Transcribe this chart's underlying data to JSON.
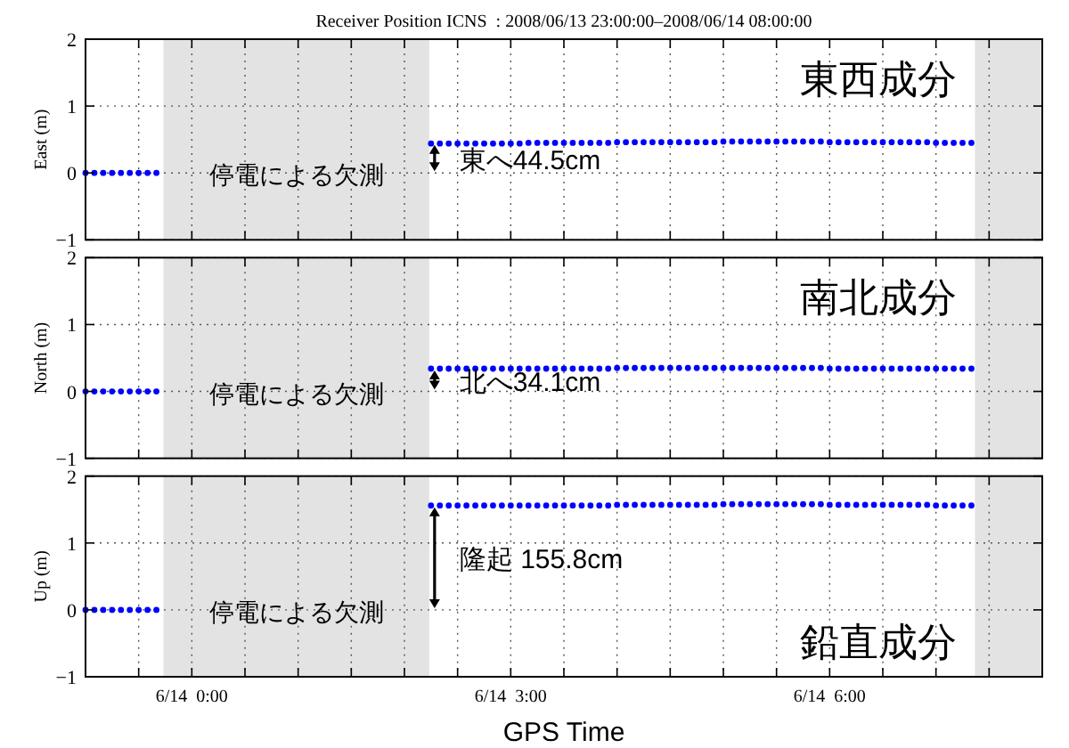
{
  "chart_data": [
    {
      "type": "scatter",
      "title": "Receiver Position ICNS  : 2008/06/13 23:00:00–2008/06/14 08:00:00",
      "ylabel": "East (m)",
      "marker": "circle",
      "grid": true,
      "tick_labels": "y",
      "xlim": [
        "2008-06-13T23:00",
        "2008-06-14T08:00"
      ],
      "xticks": [
        {
          "value": "2008-06-13T23:00",
          "label": null
        },
        {
          "value": "2008-06-13T23:30",
          "label": null
        },
        {
          "value": "2008-06-14T00:00",
          "label": null
        },
        {
          "value": "2008-06-14T00:30",
          "label": null
        },
        {
          "value": "2008-06-14T01:00",
          "label": null
        },
        {
          "value": "2008-06-14T01:30",
          "label": null
        },
        {
          "value": "2008-06-14T02:00",
          "label": null
        },
        {
          "value": "2008-06-14T02:30",
          "label": null
        },
        {
          "value": "2008-06-14T03:00",
          "label": null
        },
        {
          "value": "2008-06-14T03:30",
          "label": null
        },
        {
          "value": "2008-06-14T04:00",
          "label": null
        },
        {
          "value": "2008-06-14T04:30",
          "label": null
        },
        {
          "value": "2008-06-14T05:00",
          "label": null
        },
        {
          "value": "2008-06-14T05:30",
          "label": null
        },
        {
          "value": "2008-06-14T06:00",
          "label": null
        },
        {
          "value": "2008-06-14T06:30",
          "label": null
        },
        {
          "value": "2008-06-14T07:00",
          "label": null
        },
        {
          "value": "2008-06-14T07:30",
          "label": null
        },
        {
          "value": "2008-06-14T08:00",
          "label": null
        }
      ],
      "ylim": [
        -1,
        2
      ],
      "yticks": [
        -1,
        0,
        1,
        2
      ],
      "bands": [
        {
          "axis": "x",
          "from": "2008-06-13T23:44",
          "to": "2008-06-14T02:14",
          "color": "#e3e3e3"
        },
        {
          "axis": "x",
          "from": "2008-06-14T07:22",
          "to": "2008-06-14T08:00",
          "color": "#e3e3e3"
        }
      ],
      "annotations": [
        "停電による欠測",
        "東西成分",
        {
          "text": "東へ44.5cm",
          "x": "2008-06-14T02:15",
          "y": 0.445
        }
      ],
      "series": [
        {
          "color": "#0000ff",
          "x": [
            "2008-06-13T23:00",
            "2008-06-13T23:05",
            "2008-06-13T23:10",
            "2008-06-13T23:15",
            "2008-06-13T23:20",
            "2008-06-13T23:25",
            "2008-06-13T23:30",
            "2008-06-13T23:35",
            "2008-06-13T23:40"
          ],
          "values": [
            0,
            0,
            0,
            0,
            0,
            0,
            0,
            0,
            0
          ]
        },
        {
          "color": "#0000ff",
          "x": [
            "2008-06-14T02:15",
            "2008-06-14T02:20",
            "2008-06-14T02:25",
            "2008-06-14T02:30",
            "2008-06-14T02:35",
            "2008-06-14T02:40",
            "2008-06-14T02:45",
            "2008-06-14T02:50",
            "2008-06-14T02:55",
            "2008-06-14T03:00",
            "2008-06-14T03:05",
            "2008-06-14T03:10",
            "2008-06-14T03:15",
            "2008-06-14T03:20",
            "2008-06-14T03:25",
            "2008-06-14T03:30",
            "2008-06-14T03:35",
            "2008-06-14T03:40",
            "2008-06-14T03:45",
            "2008-06-14T03:50",
            "2008-06-14T03:55",
            "2008-06-14T04:00",
            "2008-06-14T04:05",
            "2008-06-14T04:10",
            "2008-06-14T04:15",
            "2008-06-14T04:20",
            "2008-06-14T04:25",
            "2008-06-14T04:30",
            "2008-06-14T04:35",
            "2008-06-14T04:40",
            "2008-06-14T04:45",
            "2008-06-14T04:50",
            "2008-06-14T04:55",
            "2008-06-14T05:00",
            "2008-06-14T05:05",
            "2008-06-14T05:10",
            "2008-06-14T05:15",
            "2008-06-14T05:20",
            "2008-06-14T05:25",
            "2008-06-14T05:30",
            "2008-06-14T05:35",
            "2008-06-14T05:40",
            "2008-06-14T05:45",
            "2008-06-14T05:50",
            "2008-06-14T05:55",
            "2008-06-14T06:00",
            "2008-06-14T06:05",
            "2008-06-14T06:10",
            "2008-06-14T06:15",
            "2008-06-14T06:20",
            "2008-06-14T06:25",
            "2008-06-14T06:30",
            "2008-06-14T06:35",
            "2008-06-14T06:40",
            "2008-06-14T06:45",
            "2008-06-14T06:50",
            "2008-06-14T06:55",
            "2008-06-14T07:00",
            "2008-06-14T07:05",
            "2008-06-14T07:10",
            "2008-06-14T07:15",
            "2008-06-14T07:20"
          ],
          "values": [
            0.44,
            0.44,
            0.44,
            0.44,
            0.44,
            0.44,
            0.44,
            0.44,
            0.44,
            0.44,
            0.44,
            0.45,
            0.45,
            0.45,
            0.45,
            0.45,
            0.45,
            0.45,
            0.45,
            0.45,
            0.45,
            0.46,
            0.46,
            0.46,
            0.46,
            0.46,
            0.46,
            0.46,
            0.46,
            0.46,
            0.46,
            0.46,
            0.46,
            0.47,
            0.47,
            0.47,
            0.47,
            0.47,
            0.47,
            0.47,
            0.47,
            0.47,
            0.47,
            0.47,
            0.47,
            0.46,
            0.46,
            0.46,
            0.46,
            0.46,
            0.46,
            0.46,
            0.46,
            0.46,
            0.46,
            0.46,
            0.46,
            0.45,
            0.45,
            0.45,
            0.45,
            0.45
          ]
        }
      ]
    },
    {
      "type": "scatter",
      "ylabel": "North (m)",
      "marker": "circle",
      "grid": true,
      "tick_labels": "y",
      "xlim": [
        "2008-06-13T23:00",
        "2008-06-14T08:00"
      ],
      "xticks": [
        {
          "value": "2008-06-13T23:00",
          "label": null
        },
        {
          "value": "2008-06-13T23:30",
          "label": null
        },
        {
          "value": "2008-06-14T00:00",
          "label": null
        },
        {
          "value": "2008-06-14T00:30",
          "label": null
        },
        {
          "value": "2008-06-14T01:00",
          "label": null
        },
        {
          "value": "2008-06-14T01:30",
          "label": null
        },
        {
          "value": "2008-06-14T02:00",
          "label": null
        },
        {
          "value": "2008-06-14T02:30",
          "label": null
        },
        {
          "value": "2008-06-14T03:00",
          "label": null
        },
        {
          "value": "2008-06-14T03:30",
          "label": null
        },
        {
          "value": "2008-06-14T04:00",
          "label": null
        },
        {
          "value": "2008-06-14T04:30",
          "label": null
        },
        {
          "value": "2008-06-14T05:00",
          "label": null
        },
        {
          "value": "2008-06-14T05:30",
          "label": null
        },
        {
          "value": "2008-06-14T06:00",
          "label": null
        },
        {
          "value": "2008-06-14T06:30",
          "label": null
        },
        {
          "value": "2008-06-14T07:00",
          "label": null
        },
        {
          "value": "2008-06-14T07:30",
          "label": null
        },
        {
          "value": "2008-06-14T08:00",
          "label": null
        }
      ],
      "ylim": [
        -1,
        2
      ],
      "yticks": [
        -1,
        0,
        1,
        2
      ],
      "bands": [
        {
          "axis": "x",
          "from": "2008-06-13T23:44",
          "to": "2008-06-14T02:14",
          "color": "#e3e3e3"
        },
        {
          "axis": "x",
          "from": "2008-06-14T07:22",
          "to": "2008-06-14T08:00",
          "color": "#e3e3e3"
        }
      ],
      "annotations": [
        "停電による欠測",
        "南北成分",
        {
          "text": "北へ34.1cm",
          "x": "2008-06-14T02:15",
          "y": 0.341
        }
      ],
      "series": [
        {
          "color": "#0000ff",
          "x": [
            "2008-06-13T23:00",
            "2008-06-13T23:05",
            "2008-06-13T23:10",
            "2008-06-13T23:15",
            "2008-06-13T23:20",
            "2008-06-13T23:25",
            "2008-06-13T23:30",
            "2008-06-13T23:35",
            "2008-06-13T23:40"
          ],
          "values": [
            0,
            0,
            0,
            0,
            0,
            0,
            0,
            0,
            0
          ]
        },
        {
          "color": "#0000ff",
          "x": [
            "2008-06-14T02:15",
            "2008-06-14T02:20",
            "2008-06-14T02:25",
            "2008-06-14T02:30",
            "2008-06-14T02:35",
            "2008-06-14T02:40",
            "2008-06-14T02:45",
            "2008-06-14T02:50",
            "2008-06-14T02:55",
            "2008-06-14T03:00",
            "2008-06-14T03:05",
            "2008-06-14T03:10",
            "2008-06-14T03:15",
            "2008-06-14T03:20",
            "2008-06-14T03:25",
            "2008-06-14T03:30",
            "2008-06-14T03:35",
            "2008-06-14T03:40",
            "2008-06-14T03:45",
            "2008-06-14T03:50",
            "2008-06-14T03:55",
            "2008-06-14T04:00",
            "2008-06-14T04:05",
            "2008-06-14T04:10",
            "2008-06-14T04:15",
            "2008-06-14T04:20",
            "2008-06-14T04:25",
            "2008-06-14T04:30",
            "2008-06-14T04:35",
            "2008-06-14T04:40",
            "2008-06-14T04:45",
            "2008-06-14T04:50",
            "2008-06-14T04:55",
            "2008-06-14T05:00",
            "2008-06-14T05:05",
            "2008-06-14T05:10",
            "2008-06-14T05:15",
            "2008-06-14T05:20",
            "2008-06-14T05:25",
            "2008-06-14T05:30",
            "2008-06-14T05:35",
            "2008-06-14T05:40",
            "2008-06-14T05:45",
            "2008-06-14T05:50",
            "2008-06-14T05:55",
            "2008-06-14T06:00",
            "2008-06-14T06:05",
            "2008-06-14T06:10",
            "2008-06-14T06:15",
            "2008-06-14T06:20",
            "2008-06-14T06:25",
            "2008-06-14T06:30",
            "2008-06-14T06:35",
            "2008-06-14T06:40",
            "2008-06-14T06:45",
            "2008-06-14T06:50",
            "2008-06-14T06:55",
            "2008-06-14T07:00",
            "2008-06-14T07:05",
            "2008-06-14T07:10",
            "2008-06-14T07:15",
            "2008-06-14T07:20"
          ],
          "values": [
            0.34,
            0.34,
            0.34,
            0.34,
            0.34,
            0.34,
            0.34,
            0.34,
            0.34,
            0.34,
            0.34,
            0.34,
            0.34,
            0.34,
            0.34,
            0.34,
            0.34,
            0.34,
            0.34,
            0.34,
            0.34,
            0.35,
            0.35,
            0.35,
            0.35,
            0.35,
            0.35,
            0.35,
            0.35,
            0.35,
            0.35,
            0.35,
            0.35,
            0.35,
            0.35,
            0.35,
            0.35,
            0.35,
            0.35,
            0.35,
            0.35,
            0.35,
            0.35,
            0.35,
            0.35,
            0.34,
            0.34,
            0.34,
            0.34,
            0.34,
            0.34,
            0.34,
            0.34,
            0.34,
            0.34,
            0.34,
            0.34,
            0.34,
            0.34,
            0.34,
            0.34,
            0.34
          ]
        }
      ]
    },
    {
      "type": "scatter",
      "ylabel": "Up (m)",
      "xlabel": "GPS Time",
      "marker": "circle",
      "grid": true,
      "xlim": [
        "2008-06-13T23:00",
        "2008-06-14T08:00"
      ],
      "xticks": [
        {
          "value": "2008-06-13T23:00",
          "label": null
        },
        {
          "value": "2008-06-13T23:30",
          "label": null
        },
        {
          "value": "2008-06-14T00:00",
          "label": "6/14  0:00"
        },
        {
          "value": "2008-06-14T00:30",
          "label": null
        },
        {
          "value": "2008-06-14T01:00",
          "label": null
        },
        {
          "value": "2008-06-14T01:30",
          "label": null
        },
        {
          "value": "2008-06-14T02:00",
          "label": null
        },
        {
          "value": "2008-06-14T02:30",
          "label": null
        },
        {
          "value": "2008-06-14T03:00",
          "label": "6/14  3:00"
        },
        {
          "value": "2008-06-14T03:30",
          "label": null
        },
        {
          "value": "2008-06-14T04:00",
          "label": null
        },
        {
          "value": "2008-06-14T04:30",
          "label": null
        },
        {
          "value": "2008-06-14T05:00",
          "label": null
        },
        {
          "value": "2008-06-14T05:30",
          "label": null
        },
        {
          "value": "2008-06-14T06:00",
          "label": "6/14  6:00"
        },
        {
          "value": "2008-06-14T06:30",
          "label": null
        },
        {
          "value": "2008-06-14T07:00",
          "label": null
        },
        {
          "value": "2008-06-14T07:30",
          "label": null
        },
        {
          "value": "2008-06-14T08:00",
          "label": null
        }
      ],
      "ylim": [
        -1,
        2
      ],
      "yticks": [
        -1,
        0,
        1,
        2
      ],
      "bands": [
        {
          "axis": "x",
          "from": "2008-06-13T23:44",
          "to": "2008-06-14T02:14",
          "color": "#e3e3e3"
        },
        {
          "axis": "x",
          "from": "2008-06-14T07:22",
          "to": "2008-06-14T08:00",
          "color": "#e3e3e3"
        }
      ],
      "annotations": [
        "停電による欠測",
        "鉛直成分",
        {
          "text": "隆起 155.8cm",
          "x": "2008-06-14T02:15",
          "y": 1.558
        }
      ],
      "series": [
        {
          "color": "#0000ff",
          "x": [
            "2008-06-13T23:00",
            "2008-06-13T23:05",
            "2008-06-13T23:10",
            "2008-06-13T23:15",
            "2008-06-13T23:20",
            "2008-06-13T23:25",
            "2008-06-13T23:30",
            "2008-06-13T23:35",
            "2008-06-13T23:40"
          ],
          "values": [
            0,
            0,
            0,
            0,
            0,
            0,
            0,
            0,
            0
          ]
        },
        {
          "color": "#0000ff",
          "x": [
            "2008-06-14T02:15",
            "2008-06-14T02:20",
            "2008-06-14T02:25",
            "2008-06-14T02:30",
            "2008-06-14T02:35",
            "2008-06-14T02:40",
            "2008-06-14T02:45",
            "2008-06-14T02:50",
            "2008-06-14T02:55",
            "2008-06-14T03:00",
            "2008-06-14T03:05",
            "2008-06-14T03:10",
            "2008-06-14T03:15",
            "2008-06-14T03:20",
            "2008-06-14T03:25",
            "2008-06-14T03:30",
            "2008-06-14T03:35",
            "2008-06-14T03:40",
            "2008-06-14T03:45",
            "2008-06-14T03:50",
            "2008-06-14T03:55",
            "2008-06-14T04:00",
            "2008-06-14T04:05",
            "2008-06-14T04:10",
            "2008-06-14T04:15",
            "2008-06-14T04:20",
            "2008-06-14T04:25",
            "2008-06-14T04:30",
            "2008-06-14T04:35",
            "2008-06-14T04:40",
            "2008-06-14T04:45",
            "2008-06-14T04:50",
            "2008-06-14T04:55",
            "2008-06-14T05:00",
            "2008-06-14T05:05",
            "2008-06-14T05:10",
            "2008-06-14T05:15",
            "2008-06-14T05:20",
            "2008-06-14T05:25",
            "2008-06-14T05:30",
            "2008-06-14T05:35",
            "2008-06-14T05:40",
            "2008-06-14T05:45",
            "2008-06-14T05:50",
            "2008-06-14T05:55",
            "2008-06-14T06:00",
            "2008-06-14T06:05",
            "2008-06-14T06:10",
            "2008-06-14T06:15",
            "2008-06-14T06:20",
            "2008-06-14T06:25",
            "2008-06-14T06:30",
            "2008-06-14T06:35",
            "2008-06-14T06:40",
            "2008-06-14T06:45",
            "2008-06-14T06:50",
            "2008-06-14T06:55",
            "2008-06-14T07:00",
            "2008-06-14T07:05",
            "2008-06-14T07:10",
            "2008-06-14T07:15",
            "2008-06-14T07:20"
          ],
          "values": [
            1.56,
            1.56,
            1.56,
            1.56,
            1.56,
            1.56,
            1.56,
            1.56,
            1.56,
            1.56,
            1.56,
            1.56,
            1.56,
            1.56,
            1.56,
            1.56,
            1.56,
            1.56,
            1.56,
            1.56,
            1.56,
            1.57,
            1.57,
            1.57,
            1.57,
            1.57,
            1.57,
            1.57,
            1.57,
            1.57,
            1.57,
            1.57,
            1.57,
            1.58,
            1.58,
            1.58,
            1.58,
            1.58,
            1.58,
            1.58,
            1.58,
            1.58,
            1.58,
            1.58,
            1.58,
            1.57,
            1.57,
            1.57,
            1.57,
            1.57,
            1.57,
            1.57,
            1.57,
            1.57,
            1.57,
            1.57,
            1.57,
            1.56,
            1.56,
            1.56,
            1.56,
            1.56
          ]
        }
      ]
    }
  ]
}
